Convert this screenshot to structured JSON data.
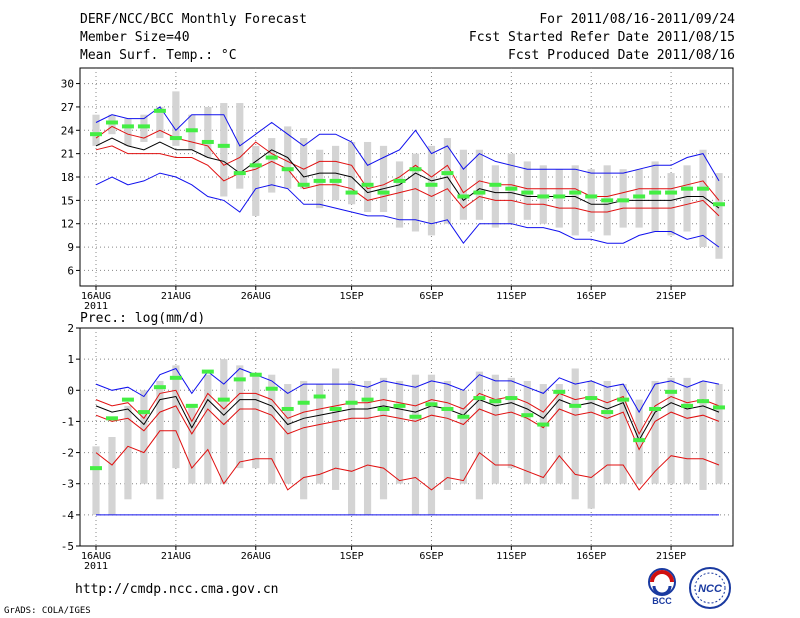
{
  "header": {
    "title": "DERF/NCC/BCC Monthly Forecast",
    "member": "Member Size=40",
    "variable": "Mean Surf. Temp.: °C",
    "for_period": "For 2011/08/16-2011/09/24",
    "start_date": "Fcst Started Refer Date 2011/08/15",
    "produced": "Fcst Produced Date 2011/08/16"
  },
  "footer": {
    "url": "http://cmdp.ncc.cma.gov.cn",
    "credit": "GrADS: COLA/IGES",
    "logo_left": "BCC",
    "logo_right": "NCC"
  },
  "colors": {
    "gray_bar": "#d4d4d4",
    "green": "#44ee44",
    "red": "#e01010",
    "blue": "#1010ee",
    "black": "#000000"
  },
  "chart_data": [
    {
      "type": "box-ensemble",
      "title": "Mean Surf. Temp.: °C",
      "ylim": [
        4,
        32
      ],
      "yticks": [
        6,
        9,
        12,
        15,
        18,
        21,
        24,
        27,
        30
      ],
      "xticks": [
        {
          "day": 0,
          "label": "16AUG",
          "sub": "2011"
        },
        {
          "day": 5,
          "label": "21AUG"
        },
        {
          "day": 10,
          "label": "26AUG"
        },
        {
          "day": 16,
          "label": "1SEP"
        },
        {
          "day": 21,
          "label": "6SEP"
        },
        {
          "day": 26,
          "label": "11SEP"
        },
        {
          "day": 31,
          "label": "16SEP"
        },
        {
          "day": 36,
          "label": "21SEP"
        }
      ],
      "days": 40,
      "box_low": [
        22,
        23.5,
        22,
        22.5,
        23,
        22,
        21.5,
        20.5,
        15.5,
        16.5,
        13,
        16,
        16.5,
        16.5,
        14,
        15,
        14.5,
        13.5,
        13.5,
        11.5,
        11,
        10.5,
        12,
        12.5,
        12.5,
        11.5,
        12,
        12.5,
        12,
        11.5,
        10.5,
        11,
        10.5,
        11.5,
        11.5,
        11,
        10.5,
        11,
        9,
        7.5
      ],
      "box_high": [
        26,
        26,
        25.5,
        26,
        27,
        29,
        26,
        27,
        27.5,
        27.5,
        22,
        23,
        24.5,
        23,
        21.5,
        22,
        22.5,
        22.5,
        22,
        20,
        21,
        22,
        23,
        21.5,
        21.5,
        19.5,
        21,
        20,
        19.5,
        19,
        19.5,
        19,
        19.5,
        19,
        19,
        20,
        18.5,
        19.5,
        21.5,
        18.5
      ],
      "green": [
        23.5,
        25,
        24.5,
        24.5,
        26.5,
        23,
        24,
        22.5,
        22,
        18.5,
        19.5,
        20.5,
        19,
        17,
        17.5,
        17.5,
        16,
        17,
        16,
        17.5,
        19,
        17,
        18.5,
        15.5,
        16,
        17,
        16.5,
        16,
        15.5,
        15.5,
        16,
        15.5,
        15,
        15,
        15.5,
        16,
        16,
        16.5,
        16.5,
        14.5
      ],
      "mean": [
        22,
        23,
        22,
        21.5,
        22.5,
        21.5,
        21.5,
        20.5,
        20,
        18.5,
        20,
        21.5,
        20.5,
        18,
        18.5,
        18.5,
        18,
        16,
        16.5,
        17,
        18.5,
        17.5,
        18,
        15,
        16.5,
        16,
        16,
        15.5,
        15.5,
        15.5,
        15.5,
        14.5,
        14.5,
        15,
        15,
        15,
        15,
        15.5,
        15.5,
        14
      ],
      "red_hi": [
        23,
        24.5,
        23.5,
        23,
        24,
        23,
        22.5,
        22,
        19.5,
        20.5,
        22.5,
        21,
        20,
        19,
        20,
        20,
        19.5,
        16.5,
        17,
        18,
        19.5,
        18,
        19.5,
        16,
        17.5,
        17,
        17,
        16.5,
        16.5,
        16.5,
        16.5,
        15.5,
        15.5,
        16,
        16.5,
        16.5,
        16.5,
        17,
        17.5,
        15
      ],
      "red_lo": [
        21.5,
        22,
        21,
        21,
        21,
        20.5,
        20.5,
        19.5,
        17.5,
        18.5,
        19,
        20,
        19,
        16.5,
        17,
        17,
        16.5,
        15,
        15.5,
        16,
        16.5,
        15.5,
        16.5,
        14,
        15.5,
        15,
        15,
        14.5,
        14.5,
        14,
        14,
        13.5,
        13.5,
        14,
        14,
        14,
        14,
        14.5,
        15,
        13
      ],
      "blue_hi": [
        25,
        26,
        25.5,
        25.5,
        27,
        24,
        26,
        26,
        26,
        22,
        23.5,
        25,
        23.5,
        22,
        23.5,
        23.5,
        22.5,
        19.5,
        20.5,
        21.5,
        24,
        21,
        22,
        19,
        21,
        20,
        19.5,
        19,
        19,
        19,
        19,
        18.5,
        18.5,
        18.5,
        19,
        19.5,
        19.5,
        20.5,
        21,
        17.5
      ],
      "blue_lo": [
        17,
        18,
        17,
        17.5,
        18.5,
        18,
        17,
        15.5,
        15,
        13.5,
        16.5,
        17,
        16.5,
        14.5,
        14.5,
        14,
        13.5,
        13,
        13,
        12.5,
        12.5,
        12,
        12.5,
        9.5,
        12,
        12,
        12,
        11.5,
        11.5,
        11,
        10,
        10,
        9.5,
        9.5,
        10.5,
        11,
        11,
        10,
        10.5,
        9
      ]
    },
    {
      "type": "box-ensemble",
      "title": "Prec.: log(mm/d)",
      "ylim": [
        -5,
        2
      ],
      "yticks": [
        -5,
        -4,
        -3,
        -2,
        -1,
        0,
        1,
        2
      ],
      "xticks": [
        {
          "day": 0,
          "label": "16AUG",
          "sub": "2011"
        },
        {
          "day": 5,
          "label": "21AUG"
        },
        {
          "day": 10,
          "label": "26AUG"
        },
        {
          "day": 16,
          "label": "1SEP"
        },
        {
          "day": 21,
          "label": "6SEP"
        },
        {
          "day": 26,
          "label": "11SEP"
        },
        {
          "day": 31,
          "label": "16SEP"
        },
        {
          "day": 36,
          "label": "21SEP"
        }
      ],
      "days": 40,
      "box_low": [
        -4,
        -4,
        -3.5,
        -3,
        -3.5,
        -2.5,
        -3,
        -3,
        -3,
        -2.5,
        -2.5,
        -3,
        -3,
        -3.5,
        -3,
        -3.2,
        -4,
        -4,
        -3.5,
        -3,
        -4,
        -4,
        -3.2,
        -3,
        -3.5,
        -3,
        -2.5,
        -3,
        -3,
        -3,
        -3.5,
        -3.8,
        -3,
        -3,
        -3,
        -3,
        -3,
        -3,
        -3.2,
        -3
      ],
      "box_high": [
        -1.8,
        -1.5,
        -0.5,
        0,
        0.3,
        0.8,
        -0.5,
        0.5,
        1,
        0.8,
        0.5,
        0.5,
        0.2,
        0.3,
        0.2,
        0.7,
        0.3,
        0.3,
        0.4,
        0.3,
        0.5,
        0.5,
        0.3,
        0,
        0.6,
        0.5,
        0.4,
        0.3,
        0.2,
        0.2,
        0.7,
        0.3,
        0.3,
        0.2,
        -0.3,
        0.3,
        0.4,
        0.4,
        0.3,
        0.2
      ],
      "green": [
        -2.5,
        -0.9,
        -0.3,
        -0.7,
        0.1,
        0.4,
        -0.5,
        0.6,
        -0.3,
        0.35,
        0.5,
        0.05,
        -0.6,
        -0.4,
        -0.2,
        -0.6,
        -0.4,
        -0.3,
        -0.6,
        -0.5,
        -0.85,
        -0.45,
        -0.6,
        -0.85,
        -0.25,
        -0.35,
        -0.25,
        -0.8,
        -1.1,
        -0.05,
        -0.5,
        -0.25,
        -0.7,
        -0.3,
        -1.6,
        -0.6,
        -0.05,
        -0.5,
        -0.35,
        -0.55
      ],
      "mean": [
        -0.5,
        -0.7,
        -0.6,
        -1.1,
        -0.3,
        -0.2,
        -1.2,
        -0.3,
        -0.8,
        -0.3,
        -0.3,
        -0.5,
        -1.1,
        -0.9,
        -0.8,
        -0.7,
        -0.6,
        -0.6,
        -0.5,
        -0.6,
        -0.7,
        -0.5,
        -0.6,
        -0.8,
        -0.3,
        -0.5,
        -0.4,
        -0.6,
        -0.9,
        -0.3,
        -0.5,
        -0.4,
        -0.6,
        -0.4,
        -1.6,
        -0.7,
        -0.4,
        -0.6,
        -0.5,
        -0.7
      ],
      "red_hi": [
        -0.3,
        -0.5,
        -0.4,
        -0.9,
        -0.1,
        0,
        -1,
        -0.1,
        -0.6,
        -0.1,
        -0.1,
        -0.3,
        -0.9,
        -0.7,
        -0.6,
        -0.5,
        -0.4,
        -0.4,
        -0.3,
        -0.4,
        -0.5,
        -0.3,
        -0.4,
        -0.6,
        -0.1,
        -0.3,
        -0.2,
        -0.4,
        -0.7,
        -0.1,
        -0.3,
        -0.2,
        -0.4,
        -0.2,
        -1.4,
        -0.5,
        -0.2,
        -0.4,
        -0.3,
        -0.5
      ],
      "red_lo": [
        -0.8,
        -1,
        -0.9,
        -1.3,
        -0.7,
        -0.5,
        -1.4,
        -0.6,
        -1.1,
        -0.6,
        -0.6,
        -0.8,
        -1.4,
        -1.2,
        -1.1,
        -1,
        -0.9,
        -0.9,
        -0.8,
        -0.9,
        -1,
        -0.8,
        -0.9,
        -1.1,
        -0.6,
        -0.8,
        -0.7,
        -0.9,
        -1.2,
        -0.6,
        -0.8,
        -0.7,
        -0.9,
        -0.7,
        -1.9,
        -1,
        -0.7,
        -0.9,
        -0.8,
        -1
      ],
      "red_bot": [
        -2,
        -2.4,
        -1.8,
        -2,
        -1.3,
        -1.3,
        -2.5,
        -1.9,
        -3,
        -2.3,
        -2.2,
        -2.2,
        -3.2,
        -2.8,
        -2.7,
        -2.5,
        -2.6,
        -2.4,
        -2.5,
        -2.9,
        -2.8,
        -3.2,
        -2.8,
        -2.9,
        -2,
        -2.4,
        -2.4,
        -2.6,
        -2.8,
        -2.1,
        -2.7,
        -2.8,
        -2.4,
        -2.4,
        -3.2,
        -2.6,
        -2.1,
        -2.2,
        -2.2,
        -2.4
      ],
      "blue_hi": [
        0.2,
        0,
        0.1,
        -0.2,
        0.5,
        0.7,
        -0.1,
        0.6,
        0.2,
        0.7,
        0.5,
        0.3,
        -0.1,
        0.2,
        0.2,
        0.2,
        0.2,
        0.1,
        0.3,
        0.2,
        0.1,
        0.3,
        0.2,
        0,
        0.5,
        0.3,
        0.3,
        0.1,
        -0.1,
        0.4,
        0.2,
        0.3,
        0.1,
        0.2,
        -0.7,
        0.2,
        0.3,
        0.1,
        0.3,
        0.2
      ],
      "blue_bot": [
        -4,
        -4,
        -4,
        -4,
        -4,
        -4,
        -4,
        -4,
        -4,
        -4,
        -4,
        -4,
        -4,
        -4,
        -4,
        -4,
        -4,
        -4,
        -4,
        -4,
        -4,
        -4,
        -4,
        -4,
        -4,
        -4,
        -4,
        -4,
        -4,
        -4,
        -4,
        -4,
        -4,
        -4,
        -4,
        -4,
        -4,
        -4,
        -4,
        -4
      ]
    }
  ]
}
